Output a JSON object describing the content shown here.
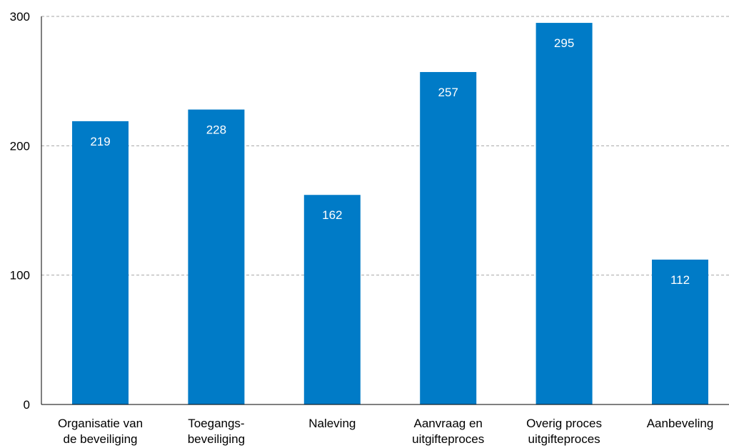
{
  "chart_data": {
    "type": "bar",
    "categories": [
      [
        "Organisatie van",
        "de beveiliging"
      ],
      [
        "Toegangs-",
        "beveiliging"
      ],
      [
        "Naleving"
      ],
      [
        "Aanvraag en",
        "uitgifteproces"
      ],
      [
        "Overig proces",
        "uitgifteproces"
      ],
      [
        "Aanbeveling"
      ]
    ],
    "values": [
      219,
      228,
      162,
      257,
      295,
      112
    ],
    "data_labels": [
      "219",
      "228",
      "162",
      "257",
      "295",
      "112"
    ],
    "y_ticks": [
      0,
      100,
      200,
      300
    ],
    "y_tick_labels": [
      "0",
      "100",
      "200",
      "300"
    ],
    "ylim": [
      0,
      300
    ],
    "grid": "horizontal-dashed",
    "legend": "none",
    "colors": {
      "bar": "#007BC7",
      "grid": "#a6a6a6",
      "axis": "#000000",
      "text": "#000000",
      "data_label": "#ffffff"
    }
  }
}
